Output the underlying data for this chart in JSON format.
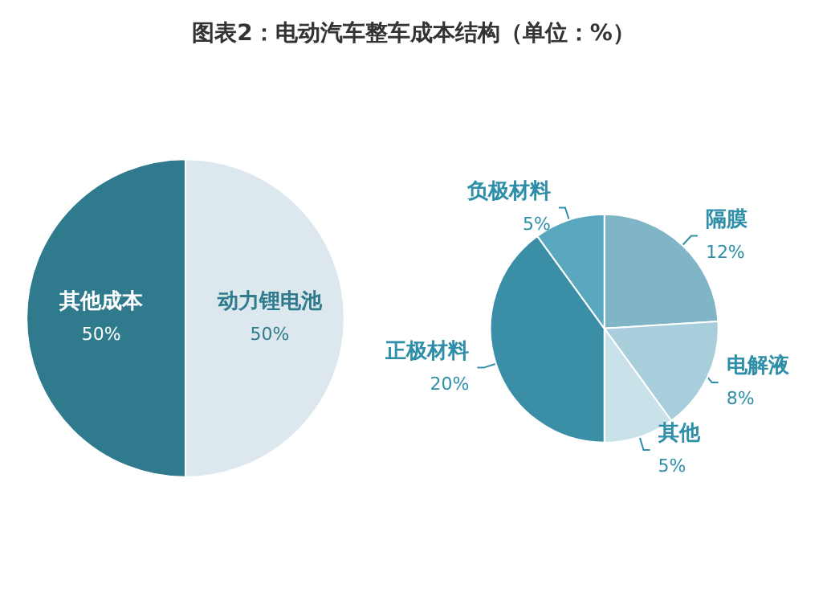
{
  "chart_data": [
    {
      "type": "pie",
      "title": "图表2：电动汽车整车成本结构（单位：%）",
      "categories": [
        "动力锂电池",
        "其他成本"
      ],
      "values": [
        50,
        50
      ],
      "colors": [
        "#dce8ed",
        "#2f7b8d"
      ],
      "value_labels": [
        "50%",
        "50%"
      ]
    },
    {
      "type": "pie",
      "categories": [
        "隔膜",
        "电解液",
        "其他",
        "正极材料",
        "负极材料"
      ],
      "values": [
        12,
        8,
        5,
        20,
        5
      ],
      "colors": [
        "#7fb5c7",
        "#a8cedb",
        "#c9e1e9",
        "#3a8ea5",
        "#5aa8bf"
      ],
      "value_labels": [
        "12%",
        "8%",
        "5%",
        "20%",
        "5%"
      ]
    }
  ]
}
